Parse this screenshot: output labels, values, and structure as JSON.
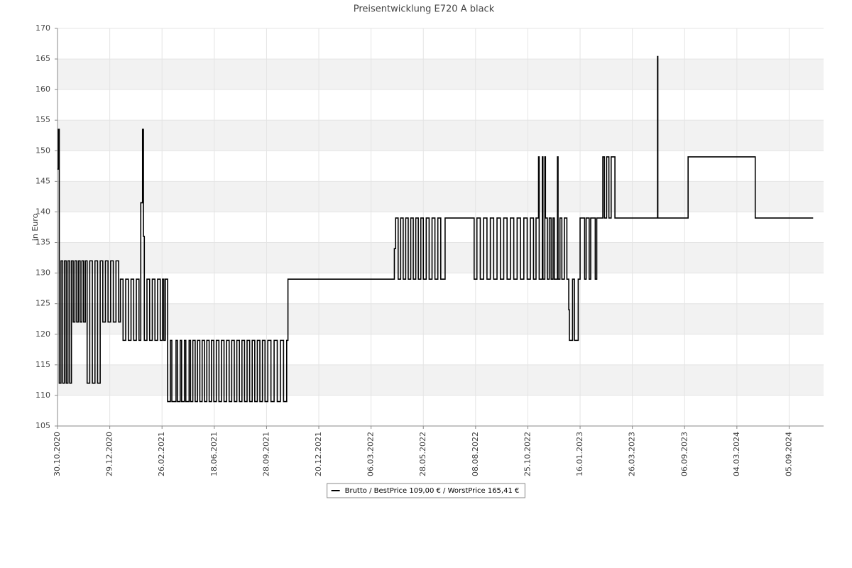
{
  "chart_data": {
    "type": "line",
    "title": "Preisentwicklung E720 A black",
    "y_label": "in Euro",
    "step": true,
    "grid": true,
    "bands": true,
    "legend": "bottom",
    "xlim": [
      "30.10.2020",
      "05.01.2025"
    ],
    "xticks": [
      "30.10.2020",
      "29.12.2020",
      "26.02.2021",
      "18.06.2021",
      "28.09.2021",
      "20.12.2021",
      "06.03.2022",
      "28.05.2022",
      "08.08.2022",
      "25.10.2022",
      "16.01.2023",
      "26.03.2023",
      "06.09.2023",
      "04.03.2024",
      "05.09.2024"
    ],
    "ylim": [
      105,
      170
    ],
    "yticks": [
      105,
      110,
      115,
      120,
      125,
      130,
      135,
      140,
      145,
      150,
      155,
      160,
      165,
      170
    ],
    "x": [
      "30.10.2020",
      "31.10.2020",
      "01.11.2020",
      "03.11.2020",
      "05.11.2020",
      "07.11.2020",
      "09.11.2020",
      "11.11.2020",
      "13.11.2020",
      "15.11.2020",
      "17.11.2020",
      "19.11.2020",
      "21.11.2020",
      "23.11.2020",
      "25.11.2020",
      "27.11.2020",
      "29.11.2020",
      "01.12.2020",
      "03.12.2020",
      "06.12.2020",
      "09.12.2020",
      "12.12.2020",
      "15.12.2020",
      "18.12.2020",
      "21.12.2020",
      "24.12.2020",
      "27.12.2020",
      "30.12.2020",
      "02.01.2021",
      "05.01.2021",
      "08.01.2021",
      "10.01.2021",
      "13.01.2021",
      "16.01.2021",
      "19.01.2021",
      "22.01.2021",
      "25.01.2021",
      "28.01.2021",
      "31.01.2021",
      "02.02.2021",
      "04.02.2021",
      "05.02.2021",
      "06.02.2021",
      "09.02.2021",
      "12.02.2021",
      "15.02.2021",
      "18.02.2021",
      "21.02.2021",
      "24.02.2021",
      "27.02.2021",
      "02.03.2021",
      "05.03.2021",
      "10.03.2021",
      "16.03.2021",
      "19.03.2021",
      "28.03.2021",
      "31.03.2021",
      "06.04.2021",
      "09.04.2021",
      "15.04.2021",
      "18.04.2021",
      "25.04.2021",
      "28.04.2021",
      "03.05.2021",
      "08.05.2021",
      "13.05.2021",
      "18.05.2021",
      "23.05.2021",
      "28.05.2021",
      "02.06.2021",
      "07.06.2021",
      "12.06.2021",
      "17.06.2021",
      "22.06.2021",
      "27.06.2021",
      "02.07.2021",
      "07.07.2021",
      "12.07.2021",
      "17.07.2021",
      "22.07.2021",
      "27.07.2021",
      "01.08.2021",
      "06.08.2021",
      "11.08.2021",
      "16.08.2021",
      "21.08.2021",
      "26.08.2021",
      "31.08.2021",
      "05.09.2021",
      "10.09.2021",
      "15.09.2021",
      "20.09.2021",
      "25.09.2021",
      "30.09.2021",
      "05.10.2021",
      "10.10.2021",
      "15.10.2021",
      "20.10.2021",
      "25.10.2021",
      "30.10.2021",
      "01.11.2021",
      "12.04.2022",
      "14.04.2022",
      "18.04.2022",
      "22.04.2022",
      "26.04.2022",
      "30.04.2022",
      "04.05.2022",
      "08.05.2022",
      "12.05.2022",
      "16.05.2022",
      "20.05.2022",
      "24.05.2022",
      "28.05.2022",
      "01.06.2022",
      "05.06.2022",
      "09.06.2022",
      "13.06.2022",
      "17.06.2022",
      "21.06.2022",
      "27.06.2022",
      "06.08.2022",
      "10.08.2022",
      "15.08.2022",
      "20.08.2022",
      "25.08.2022",
      "30.08.2022",
      "04.09.2022",
      "09.09.2022",
      "14.09.2022",
      "19.09.2022",
      "24.09.2022",
      "29.09.2022",
      "04.10.2022",
      "09.10.2022",
      "14.10.2022",
      "19.10.2022",
      "24.10.2022",
      "29.10.2022",
      "03.11.2022",
      "07.11.2022",
      "11.11.2022",
      "12.11.2022",
      "17.11.2022",
      "18.11.2022",
      "21.11.2022",
      "22.11.2022",
      "25.11.2022",
      "28.11.2022",
      "01.12.2022",
      "04.12.2022",
      "06.12.2022",
      "11.12.2022",
      "12.12.2022",
      "15.12.2022",
      "18.12.2022",
      "22.12.2022",
      "26.12.2022",
      "29.12.2022",
      "30.12.2022",
      "04.01.2023",
      "07.01.2023",
      "13.01.2023",
      "16.01.2023",
      "22.01.2023",
      "24.01.2023",
      "28.01.2023",
      "30.01.2023",
      "05.02.2023",
      "07.02.2023",
      "15.02.2023",
      "17.02.2023",
      "20.02.2023",
      "23.02.2023",
      "26.02.2023",
      "03.03.2023",
      "13.06.2023",
      "14.06.2023",
      "18.09.2023",
      "08.05.2024",
      "29.11.2024"
    ],
    "series": [
      {
        "name": "Brutto / BestPrice  109,00 € / WorstPrice  165,41 €",
        "color": "#000000",
        "values": [
          147,
          153.5,
          112,
          132,
          112,
          132,
          112,
          132,
          112,
          132,
          122,
          132,
          122,
          132,
          122,
          132,
          122,
          132,
          112,
          132,
          112,
          132,
          112,
          132,
          122,
          132,
          122,
          132,
          122,
          132,
          122,
          129,
          119,
          129,
          119,
          129,
          119,
          129,
          119,
          141.5,
          153.5,
          136,
          119,
          129,
          119,
          129,
          119,
          129,
          119,
          129,
          119,
          129,
          109,
          119,
          109,
          119,
          109,
          119,
          109,
          119,
          109,
          119,
          109,
          119,
          109,
          119,
          109,
          119,
          109,
          119,
          109,
          119,
          109,
          119,
          109,
          119,
          109,
          119,
          109,
          119,
          109,
          119,
          109,
          119,
          109,
          119,
          109,
          119,
          109,
          119,
          109,
          119,
          109,
          119,
          109,
          119,
          109,
          119,
          109,
          119,
          129,
          134,
          139,
          129,
          139,
          129,
          139,
          129,
          139,
          129,
          139,
          129,
          139,
          129,
          139,
          129,
          139,
          129,
          139,
          129,
          139,
          129,
          139,
          129,
          139,
          129,
          139,
          129,
          139,
          129,
          139,
          129,
          139,
          129,
          139,
          129,
          139,
          129,
          139,
          129,
          139,
          149,
          129,
          149,
          129,
          149,
          139,
          129,
          139,
          129,
          139,
          129,
          149,
          129,
          139,
          129,
          139,
          129,
          124,
          119,
          129,
          119,
          129,
          139,
          129,
          139,
          129,
          139,
          129,
          139,
          149,
          139,
          149,
          139,
          149,
          139,
          165.41,
          139,
          149,
          139,
          139
        ]
      }
    ]
  }
}
